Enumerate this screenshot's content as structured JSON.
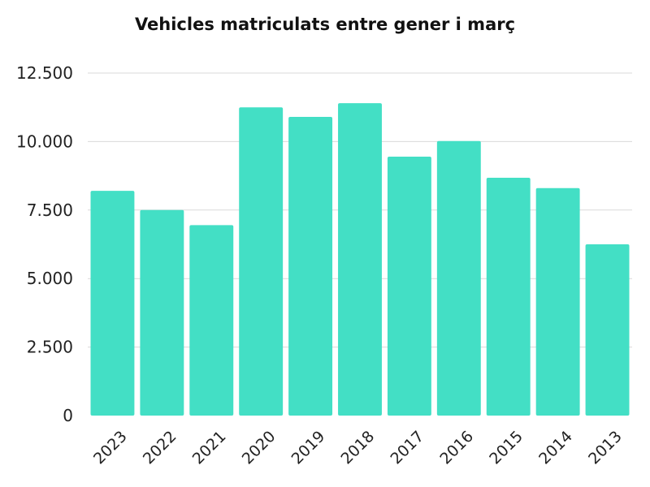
{
  "chart_data": {
    "type": "bar",
    "title": "Vehicles matriculats entre gener i març",
    "xlabel": "",
    "ylabel": "",
    "categories": [
      "2023",
      "2022",
      "2021",
      "2020",
      "2019",
      "2018",
      "2017",
      "2016",
      "2015",
      "2014",
      "2013"
    ],
    "values": [
      8200,
      7500,
      6950,
      11250,
      10900,
      11400,
      9450,
      10020,
      8680,
      8300,
      6250
    ],
    "ylim": [
      0,
      12500
    ],
    "yticks": [
      0,
      2500,
      5000,
      7500,
      10000,
      12500
    ],
    "ytick_labels": [
      "0",
      "2.500",
      "5.000",
      "7.500",
      "10.000",
      "12.500"
    ],
    "grid": true,
    "legend": "none",
    "bar_color": "#43dfc5"
  }
}
